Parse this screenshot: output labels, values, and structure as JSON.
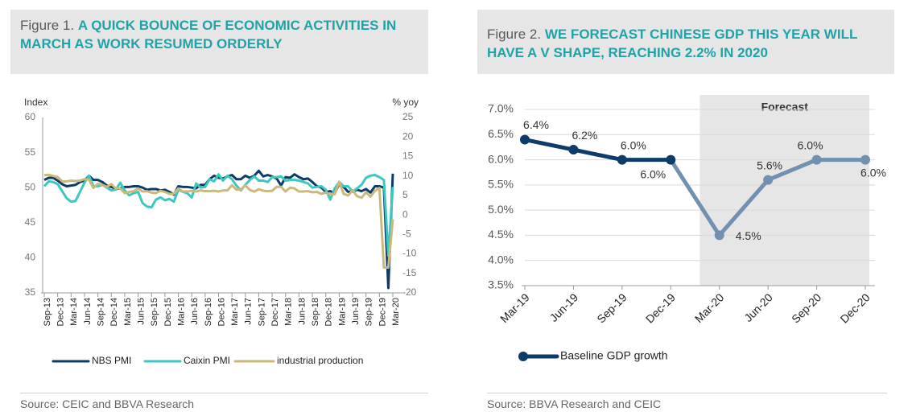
{
  "chart_data": [
    {
      "type": "line",
      "figure_label": "Figure 1.",
      "title": "A QUICK BOUNCE OF ECONOMIC ACTIVITIES IN MARCH AS WORK RESUMED ORDERLY",
      "source": "Source: CEIC and BBVA Research",
      "ylabel": "Index",
      "y2label": "% yoy",
      "categories": [
        "Sep-13",
        null,
        null,
        "Dec-13",
        null,
        null,
        "Mar-14",
        null,
        null,
        "Jun-14",
        null,
        null,
        "Sep-14",
        null,
        null,
        "Dec-14",
        null,
        null,
        "Mar-15",
        null,
        null,
        "Jun-15",
        null,
        null,
        "Sep-15",
        null,
        null,
        "Dec-15",
        null,
        null,
        "Mar-16",
        null,
        null,
        "Jun-16",
        null,
        null,
        "Sep-16",
        null,
        null,
        "Dec-16",
        null,
        null,
        "Mar-17",
        null,
        null,
        "Jun-17",
        null,
        null,
        "Sep-17",
        null,
        null,
        "Dec-17",
        null,
        null,
        "Mar-18",
        null,
        null,
        "Jun-18",
        null,
        null,
        "Sep-18",
        null,
        null,
        "Dec-18",
        null,
        null,
        "Mar-19",
        null,
        null,
        "Jun-19",
        null,
        null,
        "Sep-19",
        null,
        null,
        "Dec-19",
        null,
        null,
        "Mar-20"
      ],
      "series": [
        {
          "name": "NBS PMI",
          "color": "#0d3c6b",
          "values": [
            51.1,
            51.4,
            51.4,
            51.0,
            50.5,
            50.2,
            50.3,
            50.4,
            50.8,
            51.0,
            51.7,
            51.1,
            51.1,
            50.8,
            50.3,
            50.1,
            49.8,
            49.9,
            50.1,
            50.1,
            50.2,
            50.2,
            50.0,
            49.7,
            49.8,
            49.8,
            49.6,
            49.7,
            49.4,
            49.0,
            50.2,
            50.1,
            50.1,
            50.0,
            49.9,
            50.4,
            50.4,
            51.2,
            51.7,
            51.4,
            51.3,
            51.6,
            51.8,
            51.2,
            51.2,
            51.7,
            51.4,
            51.7,
            52.4,
            51.6,
            51.8,
            51.6,
            51.3,
            50.3,
            51.5,
            51.4,
            51.9,
            51.5,
            51.2,
            51.3,
            50.8,
            50.2,
            50.0,
            49.4,
            49.5,
            49.2,
            50.5,
            50.1,
            49.4,
            49.4,
            49.7,
            49.5,
            49.8,
            49.3,
            50.2,
            50.2,
            50.0,
            35.7,
            52.0
          ]
        },
        {
          "name": "Caixin PMI",
          "color": "#3cc8c0",
          "values": [
            50.2,
            50.9,
            50.8,
            50.5,
            49.5,
            48.5,
            48.0,
            48.1,
            49.4,
            50.7,
            51.7,
            50.2,
            50.2,
            50.4,
            50.0,
            49.6,
            49.7,
            50.7,
            49.6,
            48.9,
            49.2,
            49.4,
            47.8,
            47.3,
            47.2,
            48.3,
            48.6,
            48.2,
            48.4,
            48.0,
            49.7,
            49.4,
            49.2,
            48.6,
            50.6,
            50.0,
            50.1,
            51.2,
            50.9,
            51.9,
            51.0,
            51.7,
            51.2,
            50.3,
            49.6,
            50.4,
            51.1,
            51.6,
            51.0,
            51.0,
            50.8,
            51.5,
            51.5,
            51.6,
            51.0,
            51.1,
            51.1,
            51.0,
            50.8,
            50.6,
            50.0,
            50.1,
            50.2,
            49.7,
            48.3,
            49.9,
            50.8,
            50.2,
            50.2,
            49.4,
            49.9,
            50.4,
            51.4,
            51.7,
            51.8,
            51.5,
            51.1,
            40.3,
            50.1
          ]
        },
        {
          "name": "industrial production",
          "color": "#cbb97c",
          "axis": "y2",
          "values": [
            10.2,
            10.3,
            10.0,
            9.7,
            8.6,
            8.6,
            8.8,
            8.7,
            8.8,
            9.2,
            9.0,
            6.9,
            8.0,
            7.7,
            7.2,
            7.9,
            6.8,
            6.8,
            5.6,
            5.9,
            6.1,
            6.8,
            6.0,
            6.1,
            5.7,
            5.6,
            6.2,
            5.9,
            5.4,
            5.4,
            6.8,
            6.0,
            6.0,
            6.2,
            6.0,
            6.3,
            6.1,
            6.1,
            6.2,
            6.0,
            6.3,
            6.3,
            7.6,
            6.5,
            6.5,
            7.6,
            6.4,
            6.0,
            6.6,
            6.2,
            6.1,
            6.2,
            7.2,
            7.2,
            6.0,
            7.0,
            6.8,
            6.0,
            6.0,
            6.1,
            5.8,
            5.9,
            5.4,
            5.7,
            5.3,
            5.3,
            8.5,
            5.4,
            5.0,
            6.3,
            4.8,
            4.4,
            5.8,
            4.7,
            6.2,
            6.9,
            -13.5,
            -13.5,
            -1.1
          ]
        }
      ],
      "ylim": [
        35,
        60
      ],
      "yticks": [
        35,
        40,
        45,
        50,
        55,
        60
      ],
      "y2lim": [
        -20,
        25
      ],
      "y2ticks": [
        -20,
        -15,
        -10,
        -5,
        0,
        5,
        10,
        15,
        20,
        25
      ],
      "grid": false,
      "markers": false
    },
    {
      "type": "line",
      "figure_label": "Figure 2.",
      "title": "WE FORECAST CHINESE GDP THIS YEAR WILL HAVE A V SHAPE, REACHING 2.2% IN 2020",
      "source": "Source: BBVA Research and CEIC",
      "categories": [
        "Mar-19",
        "Jun-19",
        "Sep-19",
        "Dec-19",
        "Mar-20",
        "Jun-20",
        "Sep-20",
        "Dec-20"
      ],
      "series": [
        {
          "name": "Baseline GDP growth",
          "color": "#0d3c6b",
          "forecast_color": "#7290b0",
          "values": [
            6.4,
            6.2,
            6.0,
            6.0,
            4.5,
            5.6,
            6.0,
            6.0
          ],
          "value_labels": [
            "6.4%",
            "6.2%",
            "6.0%",
            "6.0%",
            "4.5%",
            "5.6%",
            "6.0%",
            "6.0%"
          ]
        }
      ],
      "ylim": [
        3.5,
        7.0
      ],
      "yticks": [
        {
          "value": 3.5,
          "label": "3.5%"
        },
        {
          "value": 4.0,
          "label": "4.0%"
        },
        {
          "value": 4.5,
          "label": "4.5%"
        },
        {
          "value": 5.0,
          "label": "5.0%"
        },
        {
          "value": 5.5,
          "label": "5.5%"
        },
        {
          "value": 6.0,
          "label": "6.0%"
        },
        {
          "value": 6.5,
          "label": "6.5%"
        },
        {
          "value": 7.0,
          "label": "7.0%"
        }
      ],
      "grid": true,
      "markers": true,
      "forecast": {
        "label": "Forecast",
        "from": "Mar-20"
      }
    }
  ]
}
